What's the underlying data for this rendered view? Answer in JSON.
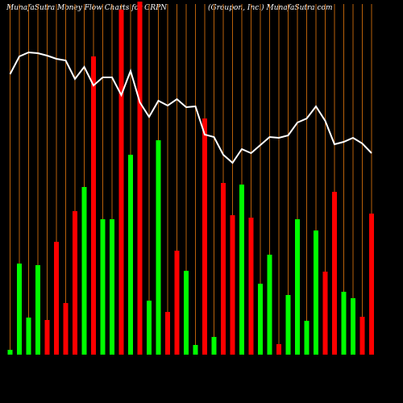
{
  "chart_data": {
    "type": "bar",
    "title": "MunafaSutra  Money Flow  Charts for GRPN",
    "subtitle": "(Groupon,  Inc.) MunafaSutra.com",
    "values": [
      6,
      113,
      46,
      111,
      43,
      140,
      64,
      178,
      208,
      370,
      168,
      168,
      428,
      248,
      438,
      67,
      266,
      53,
      129,
      104,
      12,
      293,
      22,
      213,
      173,
      211,
      170,
      88,
      124,
      13,
      74,
      168,
      42,
      154,
      103,
      202,
      78,
      70,
      47,
      175
    ],
    "colors": [
      "#00ff00",
      "#00ff00",
      "#00ff00",
      "#00ff00",
      "#ff0000",
      "#ff0000",
      "#ff0000",
      "#ff0000",
      "#00ff00",
      "#ff0000",
      "#00ff00",
      "#00ff00",
      "#ff0000",
      "#00ff00",
      "#ff0000",
      "#00ff00",
      "#00ff00",
      "#ff0000",
      "#ff0000",
      "#00ff00",
      "#00ff00",
      "#ff0000",
      "#00ff00",
      "#ff0000",
      "#ff0000",
      "#00ff00",
      "#ff0000",
      "#00ff00",
      "#00ff00",
      "#ff0000",
      "#00ff00",
      "#00ff00",
      "#00ff00",
      "#00ff00",
      "#ff0000",
      "#ff0000",
      "#00ff00",
      "#00ff00",
      "#ff0000",
      "#ff0000"
    ],
    "line": {
      "color": "#ffffff",
      "values": [
        348,
        370,
        375,
        374,
        371,
        367,
        365,
        342,
        357,
        334,
        344,
        344,
        322,
        352,
        313,
        295,
        315,
        309,
        317,
        307,
        308,
        273,
        270,
        248,
        238,
        255,
        250,
        260,
        270,
        269,
        272,
        288,
        293,
        308,
        290,
        261,
        264,
        269,
        262,
        250
      ]
    },
    "ylim": [
      0,
      440
    ],
    "grid_color": "#b8600a"
  }
}
